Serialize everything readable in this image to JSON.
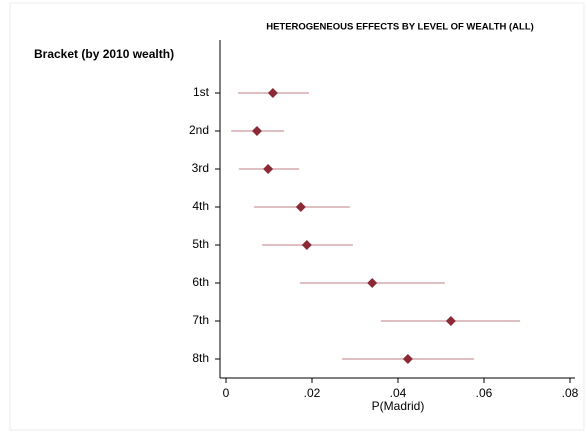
{
  "chart_data": {
    "type": "coefplot",
    "title": "HETEROGENEOUS EFFECTS BY LEVEL OF WEALTH (ALL)",
    "y_axis_title": "Bracket (by 2010 wealth)",
    "x_axis_title": "P(Madrid)",
    "categories": [
      "1st",
      "2nd",
      "3rd",
      "4th",
      "5th",
      "6th",
      "7th",
      "8th"
    ],
    "values": [
      0.0109,
      0.0072,
      0.0098,
      0.0174,
      0.0188,
      0.034,
      0.0523,
      0.0423
    ],
    "ci_low": [
      0.0028,
      0.0012,
      0.003,
      0.0065,
      0.0084,
      0.0172,
      0.036,
      0.027
    ],
    "ci_high": [
      0.0193,
      0.0135,
      0.017,
      0.0288,
      0.0295,
      0.0509,
      0.0684,
      0.0577
    ],
    "color": "#8b2a35",
    "ci_color": "#c99a9f",
    "xlim": [
      0,
      0.08
    ],
    "xticks": [
      0,
      {
        "value": 0.02,
        "label": ".02"
      },
      {
        "value": 0.04,
        "label": ".04"
      },
      {
        "value": 0.06,
        "label": ".06"
      },
      {
        "value": 0.08,
        "label": ".08"
      }
    ]
  }
}
